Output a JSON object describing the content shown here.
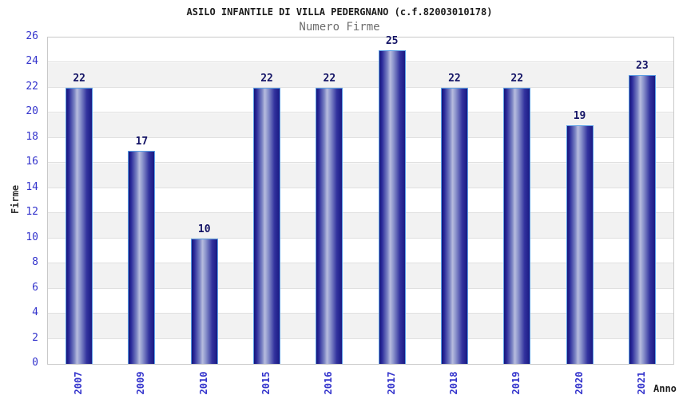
{
  "header": {
    "title": "ASILO INFANTILE DI VILLA PEDERGNANO (c.f.82003010178)",
    "subtitle": "Numero Firme"
  },
  "chart_data": {
    "type": "bar",
    "title": "ASILO INFANTILE DI VILLA PEDERGNANO (c.f.82003010178)",
    "subtitle": "Numero Firme",
    "categories": [
      "2007",
      "2009",
      "2010",
      "2015",
      "2016",
      "2017",
      "2018",
      "2019",
      "2020",
      "2021"
    ],
    "values": [
      22,
      17,
      10,
      22,
      22,
      25,
      22,
      22,
      19,
      23
    ],
    "xlabel": "Anno",
    "ylabel": "Firme",
    "ylim": [
      0,
      26
    ],
    "ytick_step": 2,
    "yticks": [
      0,
      2,
      4,
      6,
      8,
      10,
      12,
      14,
      16,
      18,
      20,
      22,
      24,
      26
    ],
    "grid": "horizontal-alternating-bands",
    "legend": "none",
    "value_labels_shown": true
  },
  "colors": {
    "bar_dark": "#1a1a84",
    "bar_highlight": "#b7bcde",
    "bar_border": "#5ca0e6",
    "value_label": "#141466",
    "axis_tick_text": "#3333cc",
    "band_gray": "#f2f2f2",
    "band_white": "#ffffff",
    "plot_border": "#c9c9c9",
    "title_text": "#1b1b1b",
    "subtitle_text": "#6e6e6e"
  }
}
